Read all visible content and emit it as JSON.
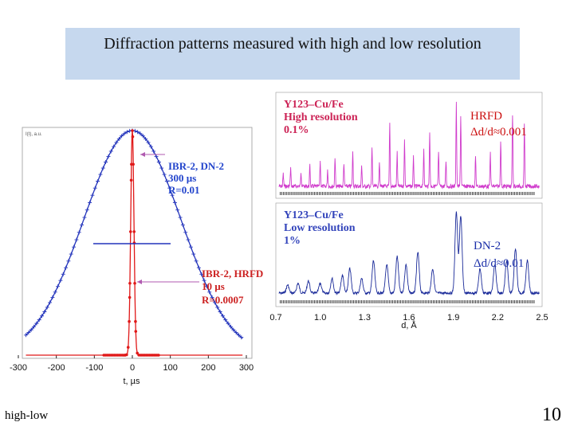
{
  "slide": {
    "title": "Diffraction patterns measured with high and low resolution",
    "footer_left": "high-low",
    "page_number": "10"
  },
  "colors": {
    "title_bg": "#c6d8ee",
    "blue": "#2233bb",
    "red": "#e01818",
    "magenta": "#d03ccc",
    "navy": "#1a2a99"
  },
  "chart_data": [
    {
      "type": "line",
      "xlabel": "t, µs",
      "ylabel": "I(t), a.u.",
      "xlim": [
        -300,
        300
      ],
      "x_ticks": [
        "-300",
        "-200",
        "-100",
        "0",
        "100",
        "200",
        "300"
      ],
      "ylim": [
        0,
        1
      ],
      "series": [
        {
          "name": "IBR-2, DN-2",
          "color": "#2233bb",
          "shape": "gaussian",
          "fwhm_us": 300,
          "peak": 1.0
        },
        {
          "name": "IBR-2, HRFD",
          "color": "#e01818",
          "shape": "gaussian",
          "fwhm_us": 10,
          "peak": 1.0
        }
      ],
      "annotations": {
        "dn2": [
          "IBR-2, DN-2",
          "300 µs",
          "R=0.01"
        ],
        "hrfd": [
          "IBR-2, HRFD",
          "10 µs",
          "R=0.0007"
        ]
      }
    },
    {
      "type": "line",
      "xlabel": "d, Å",
      "xlim": [
        0.7,
        2.5
      ],
      "x_ticks": [
        "0.7",
        "1.0",
        "1.3",
        "1.6",
        "1.9",
        "2.2",
        "2.5"
      ],
      "panels": [
        {
          "sample": [
            "Y123–Cu/Fe",
            "High resolution",
            "0.1%"
          ],
          "instrument": "HRFD",
          "resolution_label": "Δd/d≈0.001",
          "color": "#d03ccc",
          "peaks": [
            {
              "d": 0.75,
              "h": 0.15
            },
            {
              "d": 0.8,
              "h": 0.22
            },
            {
              "d": 0.87,
              "h": 0.18
            },
            {
              "d": 0.93,
              "h": 0.25
            },
            {
              "d": 1.0,
              "h": 0.3
            },
            {
              "d": 1.05,
              "h": 0.2
            },
            {
              "d": 1.1,
              "h": 0.35
            },
            {
              "d": 1.16,
              "h": 0.28
            },
            {
              "d": 1.22,
              "h": 0.4
            },
            {
              "d": 1.28,
              "h": 0.25
            },
            {
              "d": 1.35,
              "h": 0.45
            },
            {
              "d": 1.4,
              "h": 0.3
            },
            {
              "d": 1.47,
              "h": 0.75
            },
            {
              "d": 1.52,
              "h": 0.4
            },
            {
              "d": 1.57,
              "h": 0.55
            },
            {
              "d": 1.63,
              "h": 0.35
            },
            {
              "d": 1.7,
              "h": 0.45
            },
            {
              "d": 1.74,
              "h": 0.65
            },
            {
              "d": 1.8,
              "h": 0.4
            },
            {
              "d": 1.85,
              "h": 0.3
            },
            {
              "d": 1.92,
              "h": 1.0
            },
            {
              "d": 1.95,
              "h": 0.85
            },
            {
              "d": 2.05,
              "h": 0.35
            },
            {
              "d": 2.15,
              "h": 0.4
            },
            {
              "d": 2.22,
              "h": 0.55
            },
            {
              "d": 2.3,
              "h": 0.85
            },
            {
              "d": 2.38,
              "h": 0.75
            }
          ]
        },
        {
          "sample": [
            "Y123–Cu/Fe",
            "Low resolution",
            "1%"
          ],
          "instrument": "DN-2",
          "resolution_label": "Δd/d≈0.01",
          "color": "#1a2a99",
          "peaks": [
            {
              "d": 0.78,
              "h": 0.1
            },
            {
              "d": 0.85,
              "h": 0.12
            },
            {
              "d": 0.92,
              "h": 0.15
            },
            {
              "d": 1.0,
              "h": 0.12
            },
            {
              "d": 1.08,
              "h": 0.18
            },
            {
              "d": 1.15,
              "h": 0.22
            },
            {
              "d": 1.2,
              "h": 0.3
            },
            {
              "d": 1.28,
              "h": 0.18
            },
            {
              "d": 1.36,
              "h": 0.4
            },
            {
              "d": 1.45,
              "h": 0.35
            },
            {
              "d": 1.52,
              "h": 0.45
            },
            {
              "d": 1.58,
              "h": 0.35
            },
            {
              "d": 1.66,
              "h": 0.5
            },
            {
              "d": 1.76,
              "h": 0.3
            },
            {
              "d": 1.92,
              "h": 1.0
            },
            {
              "d": 1.95,
              "h": 0.95
            },
            {
              "d": 2.08,
              "h": 0.3
            },
            {
              "d": 2.18,
              "h": 0.35
            },
            {
              "d": 2.26,
              "h": 0.4
            },
            {
              "d": 2.32,
              "h": 0.55
            },
            {
              "d": 2.4,
              "h": 0.4
            }
          ]
        }
      ]
    }
  ]
}
